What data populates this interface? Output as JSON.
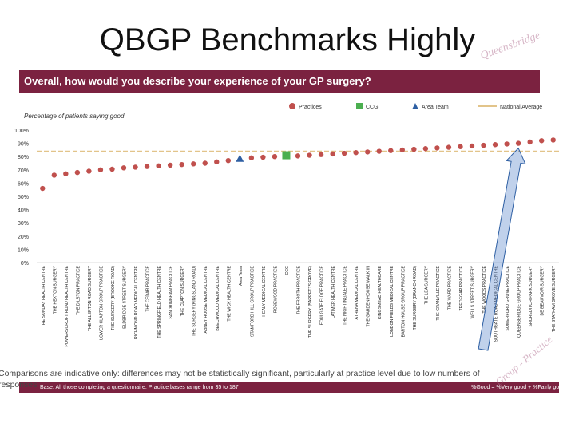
{
  "title": "QBGP Benchmarks Highly",
  "question": "Overall, how would you describe your experience of your GP surgery?",
  "brand_color": "#7b2240",
  "legend": [
    {
      "label": "Practices",
      "marker": "circle",
      "color": "#c0504d"
    },
    {
      "label": "CCG",
      "marker": "square",
      "color": "#4caf50"
    },
    {
      "label": "Area Team",
      "marker": "triangle",
      "color": "#2e5fa3"
    },
    {
      "label": "National Average",
      "marker": "line",
      "color": "#e2c48a"
    }
  ],
  "chart_data": {
    "type": "scatter",
    "subtitle": "Percentage of patients saying good",
    "ylim": [
      0,
      100
    ],
    "yticks": [
      "0%",
      "10%",
      "20%",
      "30%",
      "40%",
      "50%",
      "60%",
      "70%",
      "80%",
      "90%",
      "100%"
    ],
    "national_average": 84,
    "categories": [
      "THE SUNDAY HEALTH CENTRE",
      "THE HEXTON SURGERY",
      "POWERSCROFT ROAD HEALTH CENTRE",
      "THE DILSTON PRACTICE",
      "THE ALLERTON ROAD SURGERY",
      "LOWER CLAPTON GROUP PRACTICE",
      "THE SURGERY (BROOKE ROAD)",
      "ELDBRIDGE STREET SURGERY",
      "RICHMOND ROAD MEDICAL CENTRE",
      "THE CEDAR PRACTICE",
      "THE SPRINGFIELD HEALTH CENTRE",
      "SANDRINGHAM PRACTICE",
      "THE CLAPTON SURGERY",
      "THE SURGERY (KINGSLAND ROAD)",
      "ABNEY HOUSE MEDICAL CENTRE",
      "BEECHWOOD MEDICAL CENTRE",
      "THE WICK HEALTH CENTRE",
      "Area Team",
      "STAMFORD HILL GROUP PRACTICE",
      "HEALY MEDICAL CENTRE",
      "ROSEWOOD PRACTICE",
      "CCG",
      "THE FRROTH PRACTICE",
      "THE SURGERY (BARRETTS GROVE)",
      "FOULGATE ELDGE PRACTICE",
      "LATIMER HEALTH CENTRE",
      "THE NIGHTINGALE PRACTICE",
      "ATHENA MEDICAL CENTRE",
      "THE GARDEN HOUSE WALK IN",
      "KINGSMEAD HEALTHCARE",
      "LONDON FIELDS MEDICAL CENTRE",
      "BARTON HOUSE GROUP PRACTICE",
      "THE SURGERY (BRANCH ROAD)",
      "THE LEA SURGERY",
      "THE GRANVILLE PRACTICE",
      "THE WARD PRACTICE",
      "TREDEGAR PRACTICE",
      "WELLS STREET SURGERY",
      "THE WOODS PRACTICE",
      "SOUTHGATE ROAD MEDICAL CENTRE",
      "SOMERFORD GROVE PRACTICE",
      "QUEENSBRIDGE GROUP PRACTICE",
      "SHOREDITCH PARK SURGERY",
      "DE BEAUVOIR SURGERY",
      "THE STATHAM GROVE SURGERY"
    ],
    "series": [
      {
        "name": "Practices",
        "values": [
          56,
          66,
          67,
          68,
          69,
          70,
          70.5,
          71.5,
          72,
          72.5,
          73,
          73.5,
          74,
          74.5,
          75,
          76,
          77,
          null,
          79,
          79.5,
          80,
          null,
          80.5,
          81,
          81.5,
          82,
          82.5,
          83,
          83.5,
          84,
          84.5,
          85,
          85.5,
          86,
          86.5,
          87,
          87.5,
          88,
          88.5,
          89,
          89.5,
          90,
          91,
          92,
          92.5
        ]
      },
      {
        "name": "CCG",
        "values": [
          null,
          null,
          null,
          null,
          null,
          null,
          null,
          null,
          null,
          null,
          null,
          null,
          null,
          null,
          null,
          null,
          null,
          null,
          null,
          null,
          null,
          81,
          null,
          null,
          null,
          null,
          null,
          null,
          null,
          null,
          null,
          null,
          null,
          null,
          null,
          null,
          null,
          null,
          null,
          null,
          null,
          null,
          null,
          null,
          null
        ]
      },
      {
        "name": "Area Team",
        "values": [
          null,
          null,
          null,
          null,
          null,
          null,
          null,
          null,
          null,
          null,
          null,
          null,
          null,
          null,
          null,
          null,
          null,
          78.5,
          null,
          null,
          null,
          null,
          null,
          null,
          null,
          null,
          null,
          null,
          null,
          null,
          null,
          null,
          null,
          null,
          null,
          null,
          null,
          null,
          null,
          null,
          null,
          null,
          null,
          null,
          null
        ]
      }
    ],
    "annotation": {
      "from_category": "QUEENSBRIDGE GROUP PRACTICE",
      "type": "arrow"
    }
  },
  "footnote_line1": "Comparisons are indicative only: differences may not be statistically significant, particularly at practice level due to low numbers of",
  "footnote_line2": "responses",
  "base_text": "Base: All those completing a questionnaire: Practice bases range from 35 to 187",
  "key_text": "%Good = %Very good + %Fairly good",
  "logo_text": "Queensbridge Group Practice"
}
